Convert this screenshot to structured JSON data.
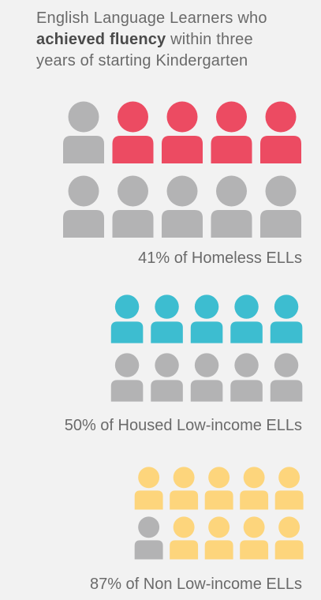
{
  "title": {
    "line1": "English Language Learners who",
    "bold": "achieved fluency",
    "line2_rest": " within three",
    "line3": "years of starting Kindergarten"
  },
  "chart_data": {
    "type": "pictograph",
    "icons_per_group": 10,
    "groups": [
      {
        "label": "41% of Homeless ELLs",
        "percent": 41,
        "colored_icons": 4,
        "color": "#ec4b62"
      },
      {
        "label": "50% of Housed Low-income ELLs",
        "percent": 50,
        "colored_icons": 5,
        "color": "#3dbdd0"
      },
      {
        "label": "87% of Non Low-income ELLs",
        "percent": 87,
        "colored_icons": 9,
        "color": "#fdd57c"
      }
    ],
    "inactive_color": "#b3b3b4"
  }
}
